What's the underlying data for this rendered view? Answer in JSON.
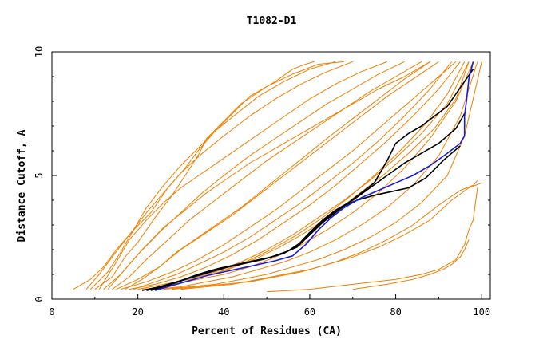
{
  "chart_data": {
    "type": "line",
    "title": "T1082-D1",
    "xlabel": "Percent of Residues (CA)",
    "ylabel": "Distance Cutoff, A",
    "xlim": [
      0,
      102
    ],
    "ylim": [
      0,
      10
    ],
    "x_ticks": [
      0,
      20,
      40,
      60,
      80,
      100
    ],
    "y_ticks": [
      0,
      5,
      10
    ],
    "x_tick_labels": [
      "0",
      "20",
      "40",
      "60",
      "80",
      "100"
    ],
    "y_tick_labels": [
      "0",
      "5",
      "10"
    ],
    "grid": false,
    "legend": "none",
    "colors": {
      "background_models": "#f07f00",
      "highlight_black": "#000000",
      "highlight_blue": "#1a1adf",
      "axes": "#000000"
    },
    "background_series": [
      {
        "x": [
          5,
          9,
          12,
          15,
          19,
          23,
          27,
          31,
          34,
          38,
          42,
          46,
          52,
          56,
          59,
          61
        ],
        "y": [
          0.4,
          0.8,
          1.3,
          2,
          2.8,
          3.5,
          4.5,
          5.3,
          6,
          6.8,
          7.5,
          8.2,
          8.8,
          9.3,
          9.5,
          9.6
        ]
      },
      {
        "x": [
          8,
          11,
          14,
          18,
          22,
          26,
          30,
          35,
          40,
          46,
          52,
          58,
          64,
          70
        ],
        "y": [
          0.4,
          1,
          1.7,
          2.6,
          3.5,
          4.3,
          5.1,
          5.9,
          6.6,
          7.4,
          8.1,
          8.7,
          9.2,
          9.6
        ]
      },
      {
        "x": [
          10,
          14,
          17,
          20,
          24,
          28,
          31,
          34,
          36,
          40,
          44,
          50,
          56,
          62,
          68
        ],
        "y": [
          0.4,
          0.9,
          1.7,
          2.3,
          3.3,
          4.2,
          5,
          5.8,
          6.5,
          7.2,
          7.9,
          8.6,
          9.1,
          9.5,
          9.6
        ]
      },
      {
        "x": [
          12,
          16,
          20,
          25,
          30,
          35,
          40,
          46,
          52,
          58,
          64,
          70,
          76,
          82
        ],
        "y": [
          0.4,
          1,
          1.8,
          2.7,
          3.5,
          4.3,
          5,
          5.8,
          6.5,
          7.2,
          7.9,
          8.5,
          9.1,
          9.6
        ]
      },
      {
        "x": [
          14,
          18,
          22,
          27,
          32,
          38,
          44,
          50,
          56,
          62,
          68,
          74,
          80,
          86
        ],
        "y": [
          0.4,
          0.9,
          1.6,
          2.4,
          3.2,
          4,
          4.8,
          5.6,
          6.3,
          7,
          7.7,
          8.4,
          9,
          9.6
        ]
      },
      {
        "x": [
          15,
          20,
          25,
          30,
          36,
          42,
          48,
          54,
          60,
          66,
          72,
          78,
          84,
          90
        ],
        "y": [
          0.4,
          0.8,
          1.3,
          2,
          2.7,
          3.4,
          4.2,
          5,
          5.8,
          6.6,
          7.4,
          8.2,
          8.9,
          9.6
        ]
      },
      {
        "x": [
          16,
          22,
          28,
          34,
          40,
          46,
          52,
          58,
          64,
          70,
          76,
          82,
          88,
          94
        ],
        "y": [
          0.4,
          0.7,
          1.1,
          1.6,
          2.2,
          2.9,
          3.6,
          4.4,
          5.2,
          6,
          6.9,
          7.8,
          8.7,
          9.6
        ]
      },
      {
        "x": [
          18,
          24,
          30,
          36,
          42,
          48,
          54,
          60,
          66,
          72,
          78,
          84,
          90,
          95
        ],
        "y": [
          0.4,
          0.6,
          0.9,
          1.3,
          1.8,
          2.4,
          3.1,
          3.8,
          4.6,
          5.5,
          6.4,
          7.4,
          8.5,
          9.6
        ]
      },
      {
        "x": [
          20,
          26,
          32,
          38,
          44,
          50,
          56,
          62,
          68,
          74,
          80,
          86,
          92,
          97
        ],
        "y": [
          0.4,
          0.6,
          0.8,
          1.1,
          1.5,
          2,
          2.6,
          3.3,
          4,
          4.8,
          5.7,
          6.7,
          7.9,
          9.6
        ]
      },
      {
        "x": [
          13,
          17,
          21,
          26,
          31,
          36,
          41,
          46,
          52,
          58,
          64,
          70,
          76,
          82,
          88
        ],
        "y": [
          0.4,
          1.2,
          2,
          2.9,
          3.6,
          4.3,
          4.9,
          5.5,
          6.1,
          6.7,
          7.3,
          7.9,
          8.5,
          9,
          9.6
        ]
      },
      {
        "x": [
          22,
          28,
          34,
          40,
          46,
          52,
          58,
          64,
          70,
          76,
          82,
          88,
          94,
          98
        ],
        "y": [
          0.4,
          0.6,
          0.8,
          1,
          1.3,
          1.7,
          2.2,
          2.8,
          3.5,
          4.3,
          5.3,
          6.5,
          8,
          9.6
        ]
      },
      {
        "x": [
          24,
          30,
          36,
          42,
          48,
          54,
          60,
          66,
          72,
          78,
          84,
          90,
          95,
          99
        ],
        "y": [
          0.4,
          0.5,
          0.7,
          0.9,
          1.2,
          1.5,
          1.9,
          2.4,
          3,
          3.7,
          4.6,
          5.8,
          7.4,
          9.6
        ]
      },
      {
        "x": [
          26,
          32,
          38,
          44,
          50,
          56,
          62,
          68,
          74,
          80,
          86,
          92,
          96,
          100
        ],
        "y": [
          0.4,
          0.5,
          0.6,
          0.8,
          1,
          1.3,
          1.6,
          2,
          2.5,
          3.1,
          3.9,
          5,
          6.6,
          9.6
        ]
      },
      {
        "x": [
          28,
          34,
          40,
          46,
          52,
          58,
          64,
          70,
          76,
          82,
          88,
          93,
          97,
          100
        ],
        "y": [
          0.4,
          0.5,
          0.6,
          0.7,
          0.9,
          1.1,
          1.4,
          1.7,
          2.1,
          2.6,
          3.2,
          4,
          4.5,
          4.7
        ]
      },
      {
        "x": [
          11,
          15,
          18,
          22,
          26,
          30,
          35,
          40,
          45,
          50,
          55,
          60,
          66,
          72,
          78
        ],
        "y": [
          0.4,
          1.5,
          2.4,
          3.2,
          3.9,
          4.5,
          5.1,
          5.7,
          6.3,
          6.9,
          7.5,
          8.1,
          8.7,
          9.2,
          9.6
        ]
      },
      {
        "x": [
          17,
          21,
          25,
          29,
          34,
          39,
          44,
          49,
          54,
          59,
          64,
          70,
          76,
          82,
          88
        ],
        "y": [
          0.4,
          0.8,
          1.3,
          1.9,
          2.5,
          3.1,
          3.7,
          4.4,
          5.1,
          5.8,
          6.5,
          7.3,
          8.1,
          8.9,
          9.6
        ]
      },
      {
        "x": [
          19,
          24,
          29,
          34,
          40,
          46,
          52,
          58,
          64,
          70,
          76,
          82,
          88,
          93
        ],
        "y": [
          0.4,
          0.7,
          1,
          1.4,
          1.9,
          2.5,
          3.2,
          3.9,
          4.7,
          5.5,
          6.4,
          7.4,
          8.5,
          9.6
        ]
      },
      {
        "x": [
          23,
          29,
          35,
          41,
          47,
          53,
          59,
          65,
          71,
          77,
          83,
          89,
          94,
          97
        ],
        "y": [
          0.4,
          0.6,
          0.9,
          1.2,
          1.6,
          2.1,
          2.7,
          3.4,
          4.2,
          5,
          5.9,
          6.9,
          8.1,
          9.6
        ]
      },
      {
        "x": [
          9,
          13,
          16,
          19,
          22,
          26,
          30,
          34,
          38,
          43,
          48,
          54,
          60,
          66
        ],
        "y": [
          0.4,
          1.1,
          1.9,
          2.8,
          3.7,
          4.6,
          5.4,
          6.1,
          6.8,
          7.5,
          8.2,
          8.8,
          9.3,
          9.6
        ]
      },
      {
        "x": [
          21,
          27,
          33,
          39,
          45,
          51,
          57,
          63,
          69,
          75,
          81,
          87,
          92,
          96
        ],
        "y": [
          0.4,
          0.5,
          0.8,
          1.1,
          1.5,
          2,
          2.6,
          3.3,
          4.1,
          5,
          6,
          7.1,
          8.3,
          9.6
        ]
      },
      {
        "x": [
          30,
          36,
          42,
          48,
          54,
          60,
          66,
          72,
          78,
          84,
          90,
          95,
          98,
          99
        ],
        "y": [
          0.4,
          0.5,
          0.6,
          0.8,
          1,
          1.2,
          1.5,
          1.9,
          2.4,
          3,
          3.8,
          4.4,
          4.6,
          4.8
        ]
      },
      {
        "x": [
          50,
          60,
          70,
          80,
          86,
          90,
          94,
          96,
          97,
          98,
          99
        ],
        "y": [
          0.3,
          0.4,
          0.6,
          0.8,
          1,
          1.2,
          1.6,
          2.2,
          2.8,
          3.2,
          4.5
        ]
      },
      {
        "x": [
          70,
          78,
          84,
          88,
          91,
          93,
          95,
          96,
          97
        ],
        "y": [
          0.4,
          0.6,
          0.8,
          1,
          1.2,
          1.4,
          1.7,
          2,
          2.4
        ]
      }
    ],
    "highlight_series": [
      {
        "color": "#000000",
        "x": [
          21,
          25,
          29,
          33,
          37,
          41,
          45,
          49,
          53,
          57,
          60,
          63,
          66,
          69,
          72,
          75,
          78,
          80,
          83,
          86,
          89,
          92,
          94,
          96,
          98
        ],
        "y": [
          0.35,
          0.5,
          0.7,
          0.9,
          1.1,
          1.3,
          1.45,
          1.6,
          1.8,
          2.1,
          2.6,
          3.1,
          3.5,
          3.9,
          4.3,
          4.7,
          5.6,
          6.3,
          6.7,
          7,
          7.4,
          7.8,
          8.3,
          8.8,
          9.3
        ]
      },
      {
        "color": "#000000",
        "x": [
          22,
          26,
          30,
          34,
          38,
          42,
          46,
          50,
          54,
          57,
          60,
          63,
          66,
          70,
          74,
          78,
          82,
          86,
          90,
          94,
          96
        ],
        "y": [
          0.35,
          0.5,
          0.75,
          1,
          1.2,
          1.35,
          1.5,
          1.65,
          1.85,
          2.15,
          2.7,
          3.2,
          3.6,
          4,
          4.5,
          5,
          5.5,
          5.9,
          6.3,
          6.9,
          7.5
        ]
      },
      {
        "color": "#000000",
        "x": [
          23,
          27,
          31,
          35,
          39,
          43,
          47,
          51,
          55,
          58,
          61,
          64,
          67,
          71,
          75,
          79,
          83,
          87,
          91,
          95
        ],
        "y": [
          0.35,
          0.55,
          0.8,
          1.05,
          1.25,
          1.4,
          1.55,
          1.7,
          1.95,
          2.3,
          2.8,
          3.3,
          3.7,
          4,
          4.2,
          4.35,
          4.5,
          4.9,
          5.6,
          6.2
        ]
      },
      {
        "color": "#1a1adf",
        "x": [
          24,
          28,
          32,
          36,
          40,
          44,
          48,
          52,
          56,
          59,
          62,
          65,
          68,
          72,
          76,
          80,
          84,
          88,
          92,
          95,
          96,
          96,
          96.5,
          97,
          98
        ],
        "y": [
          0.35,
          0.55,
          0.75,
          0.95,
          1.1,
          1.25,
          1.4,
          1.55,
          1.75,
          2.2,
          2.8,
          3.3,
          3.7,
          4.1,
          4.4,
          4.7,
          5,
          5.4,
          5.9,
          6.3,
          6.6,
          7.4,
          8.1,
          8.9,
          9.6
        ]
      }
    ]
  }
}
